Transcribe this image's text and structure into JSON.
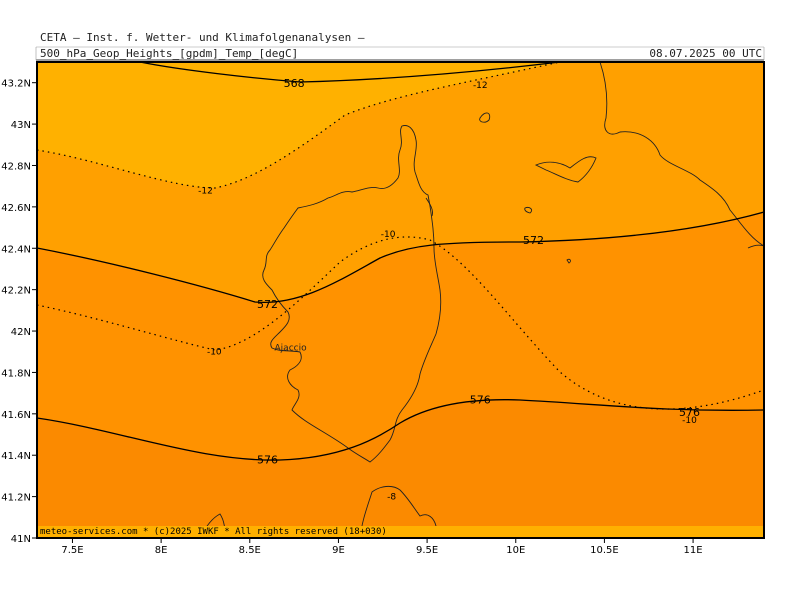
{
  "header": {
    "institute": "CETA — Inst. f. Wetter- und Klimafolgenanalysen —",
    "field": "500_hPa_Geop_Heights_[gpdm]_Temp_[degC]",
    "datetime": "08.07.2025 00 UTC"
  },
  "footer": "meteo-services.com * (c)2025 IWKF * All rights reserved (18+030)",
  "map": {
    "lon_range": [
      7.3,
      11.4
    ],
    "lat_range": [
      41.0,
      43.3
    ],
    "lon_ticks": [
      {
        "value": 7.5,
        "label": "7.5E"
      },
      {
        "value": 8.0,
        "label": "8E"
      },
      {
        "value": 8.5,
        "label": "8.5E"
      },
      {
        "value": 9.0,
        "label": "9E"
      },
      {
        "value": 9.5,
        "label": "9.5E"
      },
      {
        "value": 10.0,
        "label": "10E"
      },
      {
        "value": 10.5,
        "label": "10.5E"
      },
      {
        "value": 11.0,
        "label": "11E"
      }
    ],
    "lat_ticks": [
      {
        "value": 41.0,
        "label": "41N"
      },
      {
        "value": 41.2,
        "label": "41.2N"
      },
      {
        "value": 41.4,
        "label": "41.4N"
      },
      {
        "value": 41.6,
        "label": "41.6N"
      },
      {
        "value": 41.8,
        "label": "41.8N"
      },
      {
        "value": 42.0,
        "label": "42N"
      },
      {
        "value": 42.2,
        "label": "42.2N"
      },
      {
        "value": 42.4,
        "label": "42.4N"
      },
      {
        "value": 42.6,
        "label": "42.6N"
      },
      {
        "value": 42.8,
        "label": "42.8N"
      },
      {
        "value": 43.0,
        "label": "43N"
      },
      {
        "value": 43.2,
        "label": "43.2N"
      }
    ],
    "colors": {
      "band_568": "#ffb000",
      "band_572": "#ffa000",
      "band_576": "#ff9200",
      "band_580": "#fb8a00",
      "contour": "#000000",
      "coast": "#222222"
    },
    "height_labels": [
      {
        "label": "568",
        "lon": 8.75,
        "lat": 43.19
      },
      {
        "label": "572",
        "lon": 10.1,
        "lat": 42.43
      },
      {
        "label": "572",
        "lon": 8.6,
        "lat": 42.12
      },
      {
        "label": "576",
        "lon": 9.8,
        "lat": 41.66
      },
      {
        "label": "576",
        "lon": 10.98,
        "lat": 41.6
      },
      {
        "label": "576",
        "lon": 8.6,
        "lat": 41.37
      }
    ],
    "temp_labels": [
      {
        "label": "-12",
        "lon": 9.8,
        "lat": 43.19
      },
      {
        "label": "-12",
        "lon": 8.25,
        "lat": 42.68
      },
      {
        "label": "-10",
        "lon": 9.28,
        "lat": 42.47
      },
      {
        "label": "-10",
        "lon": 8.3,
        "lat": 41.9
      },
      {
        "label": "-10",
        "lon": 10.98,
        "lat": 41.57
      },
      {
        "label": "-8",
        "lon": 9.3,
        "lat": 41.2
      }
    ],
    "cities": [
      {
        "name": "Ajaccio",
        "lon": 8.73,
        "lat": 41.92
      }
    ]
  }
}
